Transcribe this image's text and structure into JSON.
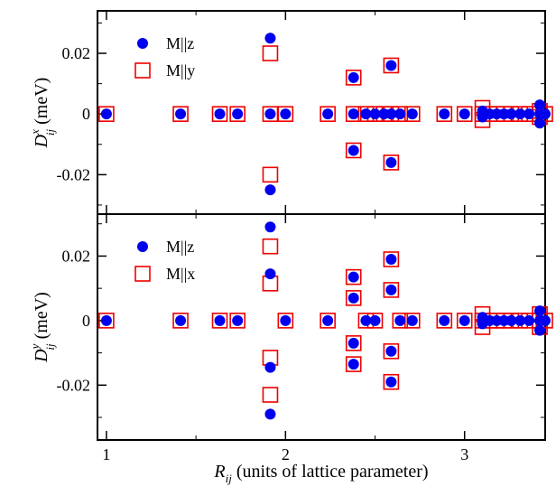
{
  "chart_data": [
    {
      "type": "scatter",
      "panel": "top",
      "ylabel": {
        "main": "D",
        "sup": "x",
        "sub": "ij",
        "unit": "(meV)"
      },
      "xlim": [
        0.95,
        3.45
      ],
      "ylim": [
        -0.033,
        0.034
      ],
      "yticks": [
        -0.02,
        0,
        0.02
      ],
      "yticklabels": [
        "-0.02",
        "0",
        "0.02"
      ],
      "xticks": [
        1,
        2,
        3
      ],
      "legend_position": "top-left",
      "series": [
        {
          "name": "M||z",
          "marker": "filled-circle",
          "color": "#0000ee",
          "points": [
            [
              1.0,
              0
            ],
            [
              1.414,
              0
            ],
            [
              1.633,
              0
            ],
            [
              1.732,
              0
            ],
            [
              1.915,
              0.025
            ],
            [
              1.915,
              -0.025
            ],
            [
              1.915,
              0
            ],
            [
              2.0,
              0
            ],
            [
              2.236,
              0
            ],
            [
              2.38,
              0.012
            ],
            [
              2.38,
              -0.012
            ],
            [
              2.38,
              0
            ],
            [
              2.449,
              0
            ],
            [
              2.5,
              0
            ],
            [
              2.55,
              0
            ],
            [
              2.59,
              0.016
            ],
            [
              2.59,
              -0.016
            ],
            [
              2.59,
              0
            ],
            [
              2.64,
              0
            ],
            [
              2.708,
              0
            ],
            [
              2.887,
              0
            ],
            [
              3.0,
              0
            ],
            [
              3.1,
              0
            ],
            [
              3.1,
              -0.001
            ],
            [
              3.1,
              0.001
            ],
            [
              3.14,
              0
            ],
            [
              3.18,
              0
            ],
            [
              3.22,
              0
            ],
            [
              3.26,
              0
            ],
            [
              3.31,
              0
            ],
            [
              3.36,
              0
            ],
            [
              3.42,
              0.003
            ],
            [
              3.42,
              -0.003
            ],
            [
              3.42,
              0
            ],
            [
              3.45,
              0
            ]
          ]
        },
        {
          "name": "M||y",
          "marker": "open-square",
          "color": "#ee0000",
          "points": [
            [
              1.0,
              0
            ],
            [
              1.414,
              0
            ],
            [
              1.633,
              0
            ],
            [
              1.732,
              0
            ],
            [
              1.915,
              0.02
            ],
            [
              1.915,
              -0.02
            ],
            [
              1.915,
              0
            ],
            [
              2.0,
              0
            ],
            [
              2.236,
              0
            ],
            [
              2.38,
              0.012
            ],
            [
              2.38,
              -0.012
            ],
            [
              2.38,
              0
            ],
            [
              2.449,
              0
            ],
            [
              2.5,
              0
            ],
            [
              2.55,
              0
            ],
            [
              2.59,
              0.016
            ],
            [
              2.59,
              -0.016
            ],
            [
              2.59,
              0
            ],
            [
              2.64,
              0
            ],
            [
              2.708,
              0
            ],
            [
              2.887,
              0
            ],
            [
              3.0,
              0
            ],
            [
              3.1,
              0
            ],
            [
              3.1,
              -0.002
            ],
            [
              3.1,
              0.002
            ],
            [
              3.14,
              0
            ],
            [
              3.18,
              0
            ],
            [
              3.22,
              0
            ],
            [
              3.26,
              0
            ],
            [
              3.31,
              0
            ],
            [
              3.36,
              0
            ],
            [
              3.42,
              0.001
            ],
            [
              3.42,
              -0.001
            ],
            [
              3.42,
              0
            ],
            [
              3.45,
              0
            ]
          ]
        }
      ]
    },
    {
      "type": "scatter",
      "panel": "bottom",
      "ylabel": {
        "main": "D",
        "sup": "y",
        "sub": "ij",
        "unit": "(meV)"
      },
      "xlabel": {
        "main": "R",
        "sub": "ij",
        "unit": "(units of lattice parameter)"
      },
      "xlim": [
        0.95,
        3.45
      ],
      "ylim": [
        -0.037,
        0.033
      ],
      "yticks": [
        -0.02,
        0,
        0.02
      ],
      "yticklabels": [
        "-0.02",
        "0",
        "0.02"
      ],
      "xticks": [
        1,
        2,
        3
      ],
      "xticklabels": [
        "1",
        "2",
        "3"
      ],
      "legend_position": "top-left",
      "series": [
        {
          "name": "M||z",
          "marker": "filled-circle",
          "color": "#0000ee",
          "points": [
            [
              1.0,
              0
            ],
            [
              1.414,
              0
            ],
            [
              1.633,
              0
            ],
            [
              1.732,
              0
            ],
            [
              1.915,
              0.029
            ],
            [
              1.915,
              0.0145
            ],
            [
              1.915,
              -0.0145
            ],
            [
              1.915,
              -0.029
            ],
            [
              2.0,
              0
            ],
            [
              2.236,
              0
            ],
            [
              2.38,
              0.0135
            ],
            [
              2.38,
              0.007
            ],
            [
              2.38,
              -0.007
            ],
            [
              2.38,
              -0.0135
            ],
            [
              2.449,
              0
            ],
            [
              2.5,
              0
            ],
            [
              2.59,
              0.019
            ],
            [
              2.59,
              0.0095
            ],
            [
              2.59,
              -0.0095
            ],
            [
              2.59,
              -0.019
            ],
            [
              2.64,
              0
            ],
            [
              2.708,
              0
            ],
            [
              2.887,
              0
            ],
            [
              3.0,
              0
            ],
            [
              3.1,
              0
            ],
            [
              3.1,
              -0.001
            ],
            [
              3.1,
              0.001
            ],
            [
              3.14,
              0
            ],
            [
              3.18,
              0
            ],
            [
              3.22,
              0
            ],
            [
              3.26,
              0
            ],
            [
              3.31,
              0
            ],
            [
              3.36,
              0
            ],
            [
              3.42,
              0.003
            ],
            [
              3.42,
              -0.003
            ],
            [
              3.42,
              0
            ],
            [
              3.45,
              0
            ]
          ]
        },
        {
          "name": "M||x",
          "marker": "open-square",
          "color": "#ee0000",
          "points": [
            [
              1.0,
              0
            ],
            [
              1.414,
              0
            ],
            [
              1.633,
              0
            ],
            [
              1.732,
              0
            ],
            [
              1.915,
              0.023
            ],
            [
              1.915,
              0.0115
            ],
            [
              1.915,
              -0.0115
            ],
            [
              1.915,
              -0.023
            ],
            [
              2.0,
              0
            ],
            [
              2.236,
              0
            ],
            [
              2.38,
              0.0135
            ],
            [
              2.38,
              0.007
            ],
            [
              2.38,
              -0.007
            ],
            [
              2.38,
              -0.0135
            ],
            [
              2.449,
              0
            ],
            [
              2.5,
              0
            ],
            [
              2.59,
              0.019
            ],
            [
              2.59,
              0.0095
            ],
            [
              2.59,
              -0.0095
            ],
            [
              2.59,
              -0.019
            ],
            [
              2.64,
              0
            ],
            [
              2.708,
              0
            ],
            [
              2.887,
              0
            ],
            [
              3.0,
              0
            ],
            [
              3.1,
              0
            ],
            [
              3.1,
              -0.002
            ],
            [
              3.1,
              0.002
            ],
            [
              3.14,
              0
            ],
            [
              3.18,
              0
            ],
            [
              3.22,
              0
            ],
            [
              3.26,
              0
            ],
            [
              3.31,
              0
            ],
            [
              3.36,
              0
            ],
            [
              3.42,
              0.002
            ],
            [
              3.42,
              -0.002
            ],
            [
              3.42,
              0
            ],
            [
              3.45,
              0
            ]
          ]
        }
      ]
    }
  ]
}
